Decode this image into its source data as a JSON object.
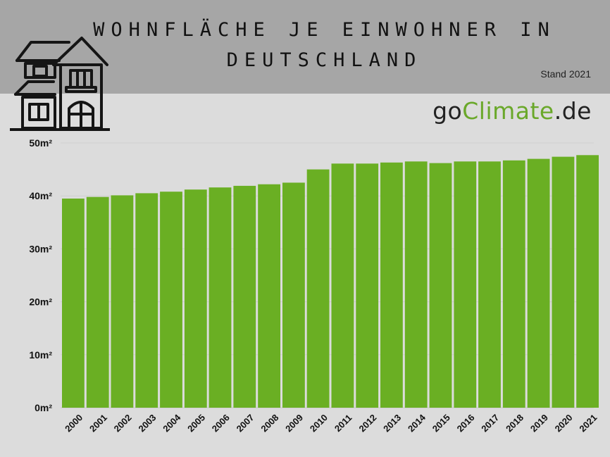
{
  "title": {
    "line1": "WOHNFLÄCHE JE EINWOHNER IN",
    "line2": "DEUTSCHLAND"
  },
  "stand": "Stand 2021",
  "logo": {
    "part1": "go",
    "part2": "Climate",
    "part3": ".de"
  },
  "icons": {
    "house": "house-icon"
  },
  "colors": {
    "bar": "#6aaf23",
    "header": "#a6a6a6",
    "background": "#dcdcdc",
    "logo_accent": "#6aa82a"
  },
  "chart_data": {
    "type": "bar",
    "categories": [
      "2000",
      "2001",
      "2002",
      "2003",
      "2004",
      "2005",
      "2006",
      "2007",
      "2008",
      "2009",
      "2010",
      "2011",
      "2012",
      "2013",
      "2014",
      "2015",
      "2016",
      "2017",
      "2018",
      "2019",
      "2020",
      "2021"
    ],
    "values": [
      39.5,
      39.8,
      40.1,
      40.5,
      40.8,
      41.2,
      41.6,
      41.9,
      42.2,
      42.5,
      45.0,
      46.1,
      46.1,
      46.3,
      46.5,
      46.2,
      46.5,
      46.5,
      46.7,
      47.0,
      47.4,
      47.7
    ],
    "ylim": [
      0,
      50
    ],
    "yticks": [
      "0m²",
      "10m²",
      "20m²",
      "30m²",
      "40m²",
      "50m²"
    ],
    "ytick_values": [
      0,
      10,
      20,
      30,
      40,
      50
    ],
    "grid": true
  }
}
